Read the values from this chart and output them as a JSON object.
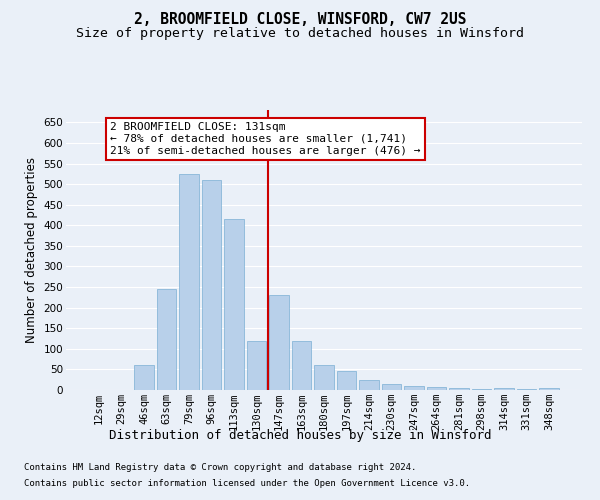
{
  "title": "2, BROOMFIELD CLOSE, WINSFORD, CW7 2US",
  "subtitle": "Size of property relative to detached houses in Winsford",
  "xlabel": "Distribution of detached houses by size in Winsford",
  "ylabel": "Number of detached properties",
  "footnote1": "Contains HM Land Registry data © Crown copyright and database right 2024.",
  "footnote2": "Contains public sector information licensed under the Open Government Licence v3.0.",
  "annotation_line1": "2 BROOMFIELD CLOSE: 131sqm",
  "annotation_line2": "← 78% of detached houses are smaller (1,741)",
  "annotation_line3": "21% of semi-detached houses are larger (476) →",
  "bar_labels": [
    "12sqm",
    "29sqm",
    "46sqm",
    "63sqm",
    "79sqm",
    "96sqm",
    "113sqm",
    "130sqm",
    "147sqm",
    "163sqm",
    "180sqm",
    "197sqm",
    "214sqm",
    "230sqm",
    "247sqm",
    "264sqm",
    "281sqm",
    "298sqm",
    "314sqm",
    "331sqm",
    "348sqm"
  ],
  "bar_values": [
    0,
    0,
    60,
    245,
    525,
    510,
    415,
    120,
    230,
    120,
    60,
    45,
    25,
    15,
    10,
    7,
    5,
    2,
    5,
    2,
    5
  ],
  "bar_color": "#b8d0ea",
  "bar_edge_color": "#7aafd4",
  "vline_x_index": 7.5,
  "vline_color": "#cc0000",
  "ylim": [
    0,
    680
  ],
  "yticks": [
    0,
    50,
    100,
    150,
    200,
    250,
    300,
    350,
    400,
    450,
    500,
    550,
    600,
    650
  ],
  "bg_color": "#eaf0f8",
  "grid_color": "#ffffff",
  "title_fontsize": 10.5,
  "subtitle_fontsize": 9.5,
  "xlabel_fontsize": 9,
  "ylabel_fontsize": 8.5,
  "tick_fontsize": 7.5,
  "annot_fontsize": 8,
  "footnote_fontsize": 6.5
}
